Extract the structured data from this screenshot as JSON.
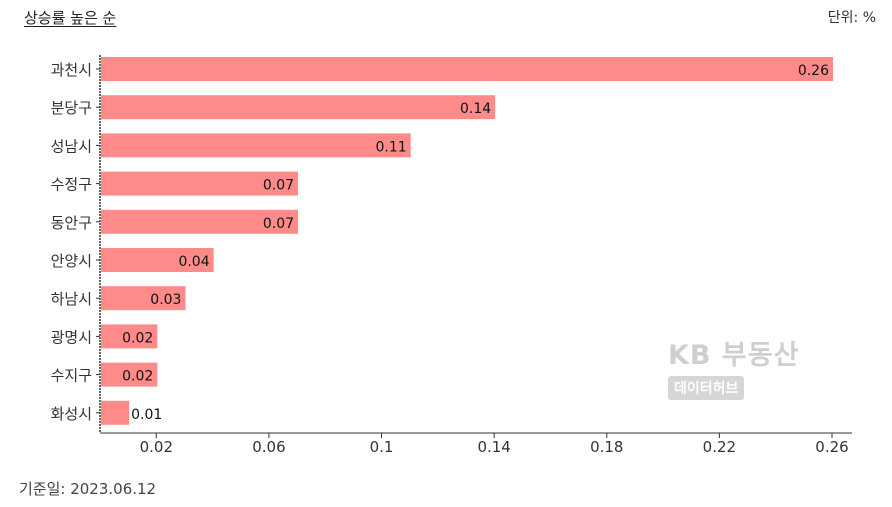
{
  "header": {
    "title": "상승률 높은 순",
    "unit": "단위: %"
  },
  "footer": {
    "date": "기준일: 2023.06.12"
  },
  "watermark": {
    "brand": "KB 부동산",
    "sub": "데이터허브"
  },
  "colors": {
    "bar": "#ff8a8a",
    "axis": "#333333"
  },
  "chart_data": {
    "type": "bar",
    "orientation": "horizontal",
    "title": "상승률 높은 순",
    "categories": [
      "과천시",
      "분당구",
      "성남시",
      "수정구",
      "동안구",
      "안양시",
      "하남시",
      "광명시",
      "수지구",
      "화성시"
    ],
    "values": [
      0.26,
      0.14,
      0.11,
      0.07,
      0.07,
      0.04,
      0.03,
      0.02,
      0.02,
      0.01
    ],
    "value_labels": [
      "0.26",
      "0.14",
      "0.11",
      "0.07",
      "0.07",
      "0.04",
      "0.03",
      "0.02",
      "0.02",
      "0.01"
    ],
    "xlim": [
      0,
      0.26
    ],
    "xticks": [
      0.02,
      0.06,
      0.1,
      0.14,
      0.18,
      0.22,
      0.26
    ],
    "xtick_labels": [
      "0.02",
      "0.06",
      "0.1",
      "0.14",
      "0.18",
      "0.22",
      "0.26"
    ],
    "grid": false,
    "legend": "none"
  }
}
